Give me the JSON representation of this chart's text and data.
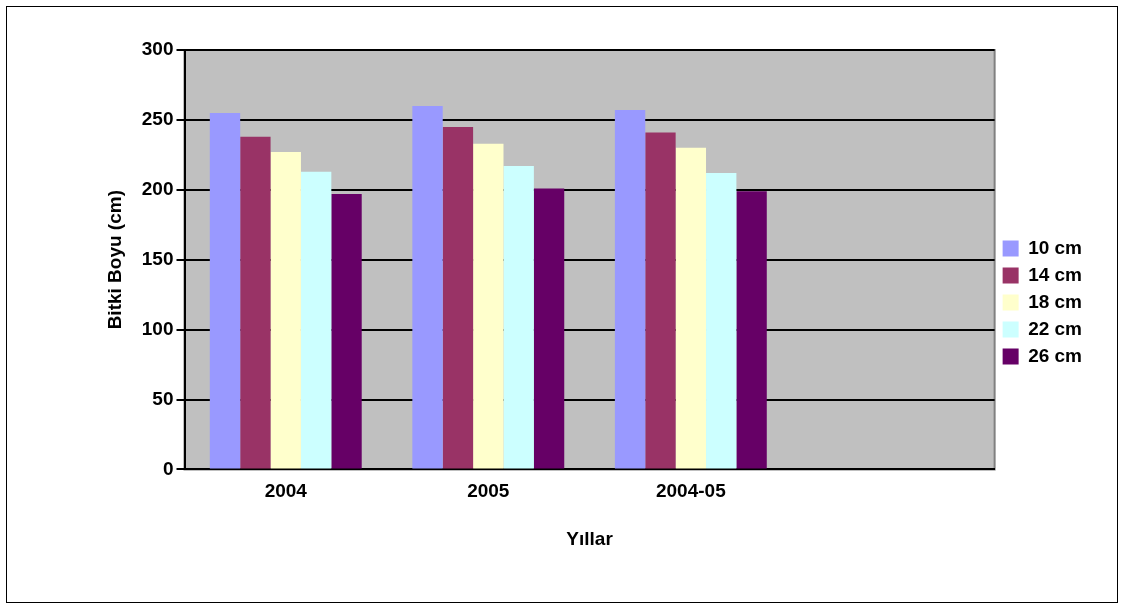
{
  "chart_data": {
    "type": "bar",
    "xlabel": "Yıllar",
    "ylabel": "Bitki Boyu (cm)",
    "categories": [
      "2004",
      "2005",
      "2004-05",
      null
    ],
    "series": [
      {
        "name": "10 cm",
        "color": "#9999ff",
        "values": [
          255,
          260,
          257,
          null
        ]
      },
      {
        "name": "14 cm",
        "color": "#993366",
        "values": [
          238,
          245,
          241,
          null
        ]
      },
      {
        "name": "18 cm",
        "color": "#ffffcc",
        "values": [
          227,
          233,
          230,
          null
        ]
      },
      {
        "name": "22 cm",
        "color": "#ccffff",
        "values": [
          213,
          217,
          212,
          null
        ]
      },
      {
        "name": "26 cm",
        "color": "#660066",
        "values": [
          197,
          201,
          199,
          null
        ]
      }
    ],
    "ylim": [
      0,
      300
    ],
    "yticks": [
      0,
      50,
      100,
      150,
      200,
      250,
      300
    ],
    "grid": "y",
    "legend": "right"
  }
}
